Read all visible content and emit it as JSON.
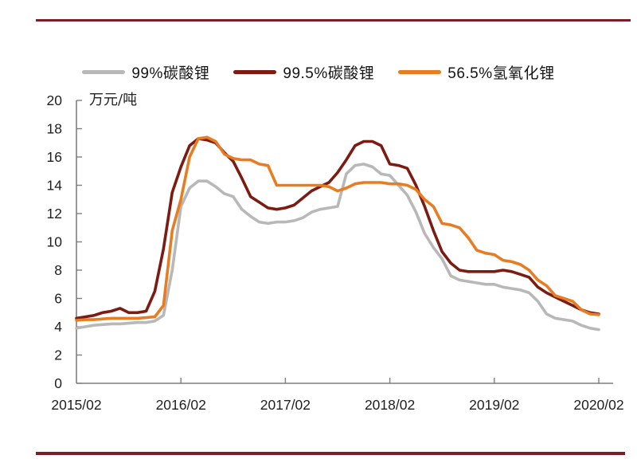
{
  "figure": {
    "unit_label": "万元/吨",
    "rule_color": "#7a1f2a",
    "background": "#ffffff"
  },
  "legend": {
    "items": [
      {
        "label": "99%碳酸锂",
        "color": "#b8b8b8"
      },
      {
        "label": "99.5%碳酸锂",
        "color": "#7c1b12"
      },
      {
        "label": "56.5%氢氧化锂",
        "color": "#e87c22"
      }
    ]
  },
  "chart_data": {
    "type": "line",
    "ylabel": "万元/吨",
    "ylim": [
      0,
      20
    ],
    "y_ticks": [
      0,
      2,
      4,
      6,
      8,
      10,
      12,
      14,
      16,
      18,
      20
    ],
    "x_tick_labels": [
      "2015/02",
      "2016/02",
      "2017/02",
      "2018/02",
      "2019/02",
      "2020/02"
    ],
    "grid": false,
    "legend_position": "top",
    "axis_color": "#7f7f7f",
    "tick_text_color": "#1f1f1f",
    "x": [
      "2015/02",
      "2015/03",
      "2015/04",
      "2015/05",
      "2015/06",
      "2015/07",
      "2015/08",
      "2015/09",
      "2015/10",
      "2015/11",
      "2015/12",
      "2016/01",
      "2016/02",
      "2016/03",
      "2016/04",
      "2016/05",
      "2016/06",
      "2016/07",
      "2016/08",
      "2016/09",
      "2016/10",
      "2016/11",
      "2016/12",
      "2017/01",
      "2017/02",
      "2017/03",
      "2017/04",
      "2017/05",
      "2017/06",
      "2017/07",
      "2017/08",
      "2017/09",
      "2017/10",
      "2017/11",
      "2017/12",
      "2018/01",
      "2018/02",
      "2018/03",
      "2018/04",
      "2018/05",
      "2018/06",
      "2018/07",
      "2018/08",
      "2018/09",
      "2018/10",
      "2018/11",
      "2018/12",
      "2019/01",
      "2019/02",
      "2019/03",
      "2019/04",
      "2019/05",
      "2019/06",
      "2019/07",
      "2019/08",
      "2019/09",
      "2019/10",
      "2019/11",
      "2019/12",
      "2020/01",
      "2020/02"
    ],
    "series": [
      {
        "id": "li2co3-99",
        "name": "99%碳酸锂",
        "color": "#b8b8b8",
        "values": [
          3.9,
          4.0,
          4.1,
          4.15,
          4.2,
          4.2,
          4.25,
          4.3,
          4.3,
          4.4,
          4.8,
          8.0,
          12.5,
          13.8,
          14.3,
          14.3,
          13.9,
          13.4,
          13.2,
          12.3,
          11.8,
          11.4,
          11.3,
          11.4,
          11.4,
          11.5,
          11.7,
          12.1,
          12.3,
          12.4,
          12.5,
          14.8,
          15.4,
          15.5,
          15.3,
          14.8,
          14.7,
          14.0,
          13.3,
          12.1,
          10.6,
          9.6,
          8.8,
          7.6,
          7.3,
          7.2,
          7.1,
          7.0,
          7.0,
          6.8,
          6.7,
          6.6,
          6.4,
          5.8,
          4.9,
          4.6,
          4.5,
          4.4,
          4.1,
          3.9,
          3.8
        ]
      },
      {
        "id": "li2co3-99_5",
        "name": "99.5%碳酸锂",
        "color": "#7c1b12",
        "values": [
          4.6,
          4.7,
          4.8,
          5.0,
          5.1,
          5.3,
          5.0,
          5.0,
          5.1,
          6.5,
          9.5,
          13.5,
          15.3,
          16.8,
          17.3,
          17.2,
          17.0,
          16.3,
          15.7,
          14.5,
          13.2,
          12.8,
          12.4,
          12.3,
          12.4,
          12.6,
          13.1,
          13.6,
          13.9,
          14.2,
          14.9,
          15.8,
          16.8,
          17.1,
          17.1,
          16.8,
          15.5,
          15.4,
          15.2,
          14.0,
          12.5,
          10.8,
          9.3,
          8.5,
          8.0,
          7.9,
          7.9,
          7.9,
          7.9,
          8.0,
          7.9,
          7.7,
          7.5,
          6.8,
          6.4,
          6.1,
          5.8,
          5.5,
          5.2,
          5.0,
          4.9
        ]
      },
      {
        "id": "lioh-56_5",
        "name": "56.5%氢氧化锂",
        "color": "#e87c22",
        "values": [
          4.45,
          4.5,
          4.5,
          4.55,
          4.6,
          4.6,
          4.6,
          4.6,
          4.65,
          4.7,
          5.5,
          10.8,
          13.0,
          16.0,
          17.3,
          17.4,
          17.1,
          16.2,
          15.9,
          15.8,
          15.8,
          15.5,
          15.4,
          14.0,
          14.0,
          14.0,
          14.0,
          14.0,
          14.0,
          13.9,
          13.6,
          13.8,
          14.1,
          14.2,
          14.2,
          14.2,
          14.1,
          14.1,
          14.0,
          13.7,
          13.0,
          12.5,
          11.3,
          11.2,
          11.0,
          10.3,
          9.4,
          9.2,
          9.1,
          8.7,
          8.6,
          8.4,
          8.0,
          7.3,
          6.9,
          6.2,
          6.0,
          5.8,
          5.2,
          4.9,
          4.85
        ]
      }
    ]
  }
}
